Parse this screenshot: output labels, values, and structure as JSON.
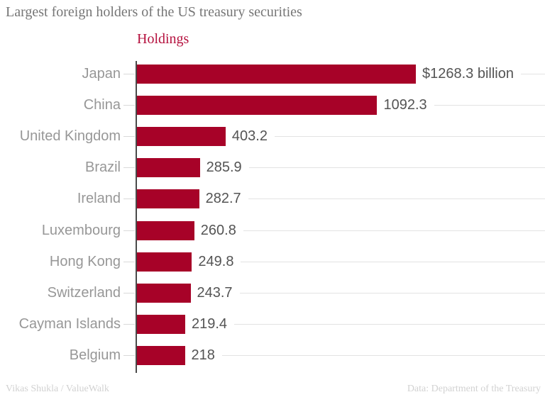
{
  "title": "Largest foreign holders of the US treasury securities",
  "column_header": "Holdings",
  "footer": {
    "left": "Vikas Shukla / ValueWalk",
    "right": "Data: Department of the Treasury"
  },
  "colors": {
    "bar": "#a70228",
    "column_header": "#b5123f",
    "title_text": "#767676",
    "category_text": "#979797",
    "value_text": "#545454",
    "axis": "#4a4a4a",
    "tick": "#d9d9d9",
    "leader": "#e3e3e3",
    "footer_text": "#d2d2d2"
  },
  "chart_data": {
    "type": "bar",
    "orientation": "horizontal",
    "title": "Largest foreign holders of the US treasury securities",
    "series_label": "Holdings",
    "unit": "billion USD",
    "categories": [
      "Japan",
      "China",
      "United Kingdom",
      "Brazil",
      "Ireland",
      "Luxembourg",
      "Hong Kong",
      "Switzerland",
      "Cayman Islands",
      "Belgium"
    ],
    "values": [
      1268.3,
      1092.3,
      403.2,
      285.9,
      282.7,
      260.8,
      249.8,
      243.7,
      219.4,
      218
    ],
    "value_labels": [
      "$1268.3 billion",
      "1092.3",
      "403.2",
      "285.9",
      "282.7",
      "260.8",
      "249.8",
      "243.7",
      "219.4",
      "218"
    ],
    "xlim": [
      0,
      1268.3
    ],
    "grid": false,
    "legend": false,
    "value_label_position": "outside-end"
  }
}
